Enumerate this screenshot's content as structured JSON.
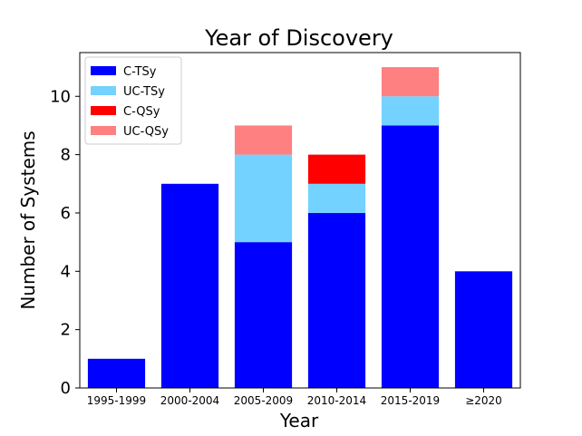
{
  "chart_data": {
    "type": "bar",
    "stacked": true,
    "title": "Year of Discovery",
    "xlabel": "Year",
    "ylabel": "Number of Systems",
    "categories": [
      "1995-1999",
      "2000-2004",
      "2005-2009",
      "2010-2014",
      "2015-2019",
      "≥2020"
    ],
    "series": [
      {
        "name": "C-TSy",
        "color": "#0000ff",
        "values": [
          1,
          7,
          5,
          6,
          9,
          4
        ]
      },
      {
        "name": "UC-TSy",
        "color": "#73d2ff",
        "values": [
          0,
          0,
          3,
          1,
          1,
          0
        ]
      },
      {
        "name": "C-QSy",
        "color": "#ff0000",
        "values": [
          0,
          0,
          0,
          1,
          0,
          0
        ]
      },
      {
        "name": "UC-QSy",
        "color": "#ff8080",
        "values": [
          0,
          0,
          1,
          0,
          1,
          0
        ]
      }
    ],
    "ylim": [
      0,
      11.5
    ],
    "yticks": [
      0,
      2,
      4,
      6,
      8,
      10
    ],
    "grid": false,
    "legend_position": "top-left"
  }
}
